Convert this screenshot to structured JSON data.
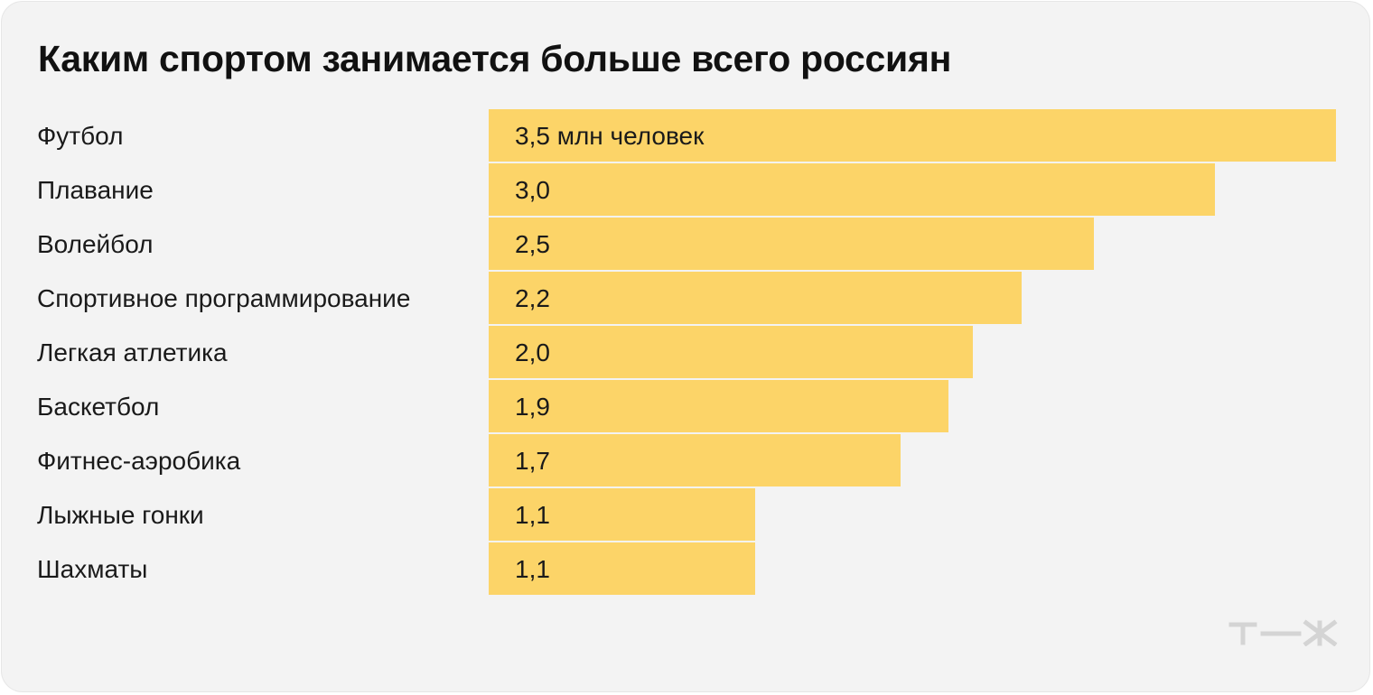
{
  "chart_data": {
    "type": "bar",
    "orientation": "horizontal",
    "title": "Каким спортом занимается больше всего россиян",
    "unit_suffix": " млн человек",
    "categories": [
      "Футбол",
      "Плавание",
      "Волейбол",
      "Спортивное программирование",
      "Легкая атлетика",
      "Баскетбол",
      "Фитнес-аэробика",
      "Лыжные гонки",
      "Шахматы"
    ],
    "values": [
      3.5,
      3.0,
      2.5,
      2.2,
      2.0,
      1.9,
      1.7,
      1.1,
      1.1
    ],
    "value_labels": [
      "3,5 млн человек",
      "3,0",
      "2,5",
      "2,2",
      "2,0",
      "1,9",
      "1,7",
      "1,1",
      "1,1"
    ],
    "xlim": [
      0,
      3.5
    ],
    "grid": false,
    "legend": "none",
    "bar_color": "#fcd468"
  },
  "logo": {
    "name": "tzh-logo",
    "text": "т—ж",
    "color": "#d4d4d4"
  }
}
